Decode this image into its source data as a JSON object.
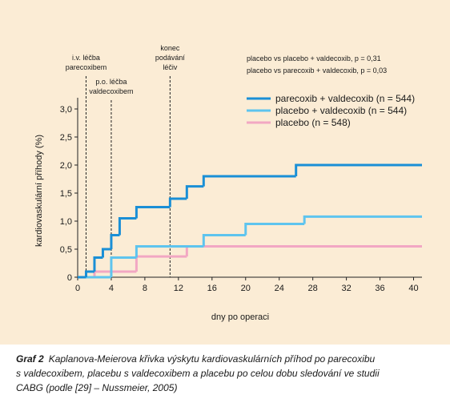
{
  "chart_data": {
    "type": "step",
    "xlabel": "dny po operaci",
    "ylabel": "kardiovaskulární příhody (%)",
    "xlim": [
      0,
      41
    ],
    "ylim": [
      0,
      3.2
    ],
    "xticks": [
      0,
      4,
      8,
      12,
      16,
      20,
      24,
      28,
      32,
      36,
      40
    ],
    "yticks": [
      0,
      {
        "value": 0.5,
        "label": "0,5"
      },
      {
        "value": 1.0,
        "label": "1,0"
      },
      {
        "value": 1.5,
        "label": "1,5"
      },
      {
        "value": 2.0,
        "label": "2,0"
      },
      {
        "value": 2.5,
        "label": "2,5"
      },
      {
        "value": 3.0,
        "label": "3,0"
      }
    ],
    "series": [
      {
        "name": "parecoxib + valdecoxib (n = 544)",
        "color": "#1a8fd6",
        "x": [
          0,
          1,
          2,
          3,
          4,
          5,
          7,
          11,
          13,
          15,
          26,
          41
        ],
        "values": [
          0,
          0.1,
          0.35,
          0.5,
          0.75,
          1.05,
          1.25,
          1.4,
          1.62,
          1.8,
          2.0,
          2.0
        ]
      },
      {
        "name": "placebo + valdecoxib (n = 544)",
        "color": "#5ec4ee",
        "x": [
          0,
          4,
          7,
          15,
          20,
          27,
          41
        ],
        "values": [
          0,
          0.35,
          0.55,
          0.75,
          0.95,
          1.08,
          1.08
        ]
      },
      {
        "name": "placebo (n = 548)",
        "color": "#f2a7c3",
        "x": [
          0,
          2,
          7,
          13,
          41
        ],
        "values": [
          0,
          0.1,
          0.37,
          0.55,
          0.55
        ]
      }
    ],
    "annotations": [
      {
        "text": [
          "i.v. léčba",
          "parecoxibem"
        ],
        "x": 1
      },
      {
        "text": [
          "p.o. léčba",
          "valdecoxibem"
        ],
        "x": 4
      },
      {
        "text": [
          "konec",
          "podávání",
          "léčiv"
        ],
        "x": 11
      }
    ],
    "notes": [
      "placebo vs placebo + valdecoxib, p = 0,31",
      "placebo vs parecoxib + valdecoxib, p = 0,03"
    ],
    "caption_label": "Graf 2",
    "caption_lines": [
      "Kaplanova-Meierova křivka výskytu kardiovaskulárních příhod po parecoxibu",
      "s valdecoxibem, placebu s valdecoxibem a placebu po celou dobu sledování ve studii",
      "CABG (podle [29] – Nussmeier, 2005)"
    ]
  }
}
